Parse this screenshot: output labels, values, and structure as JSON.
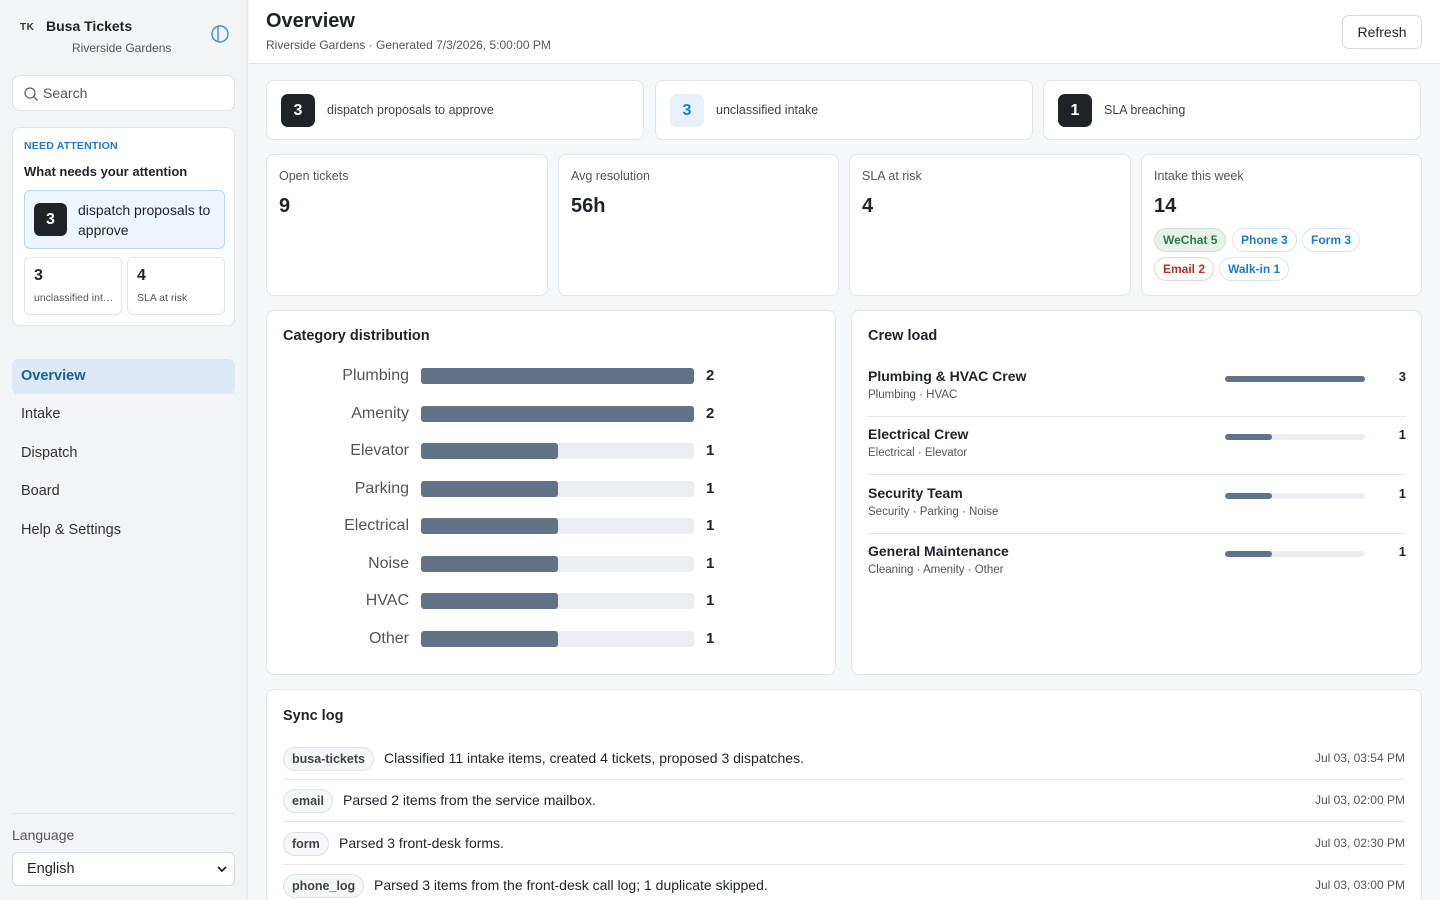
{
  "brand": {
    "logo": "TK",
    "name": "Busa Tickets",
    "property": "Riverside Gardens"
  },
  "search": {
    "placeholder": "Search"
  },
  "attention": {
    "eyebrow": "NEED ATTENTION",
    "title": "What needs your attention",
    "primary": {
      "count": "3",
      "label": "dispatch proposals to approve"
    },
    "secondary": [
      {
        "count": "3",
        "label": "unclassified intake"
      },
      {
        "count": "4",
        "label": "SLA at risk"
      }
    ]
  },
  "nav": {
    "items": [
      {
        "label": "Overview",
        "active": true
      },
      {
        "label": "Intake",
        "active": false
      },
      {
        "label": "Dispatch",
        "active": false
      },
      {
        "label": "Board",
        "active": false
      },
      {
        "label": "Help & Settings",
        "active": false
      }
    ]
  },
  "language": {
    "label": "Language",
    "value": "English"
  },
  "header": {
    "title": "Overview",
    "subtitle": "Riverside Gardens · Generated 7/3/2026, 5:00:00 PM",
    "refresh_label": "Refresh"
  },
  "alerts": [
    {
      "count": "3",
      "label": "dispatch proposals to approve",
      "style": "dark"
    },
    {
      "count": "3",
      "label": "unclassified intake",
      "style": "light"
    },
    {
      "count": "1",
      "label": "SLA breaching",
      "style": "dark"
    }
  ],
  "stats": [
    {
      "label": "Open tickets",
      "value": "9"
    },
    {
      "label": "Avg resolution",
      "value": "56h"
    },
    {
      "label": "SLA at risk",
      "value": "4"
    },
    {
      "label": "Intake this week",
      "value": "14"
    }
  ],
  "intake_chips": [
    {
      "label": "WeChat 5",
      "tone": "green"
    },
    {
      "label": "Phone 3",
      "tone": "blue"
    },
    {
      "label": "Form 3",
      "tone": "blue"
    },
    {
      "label": "Email 2",
      "tone": "red"
    },
    {
      "label": "Walk-in 1",
      "tone": "blue"
    }
  ],
  "category_distribution": {
    "title": "Category distribution",
    "max": 2,
    "rows": [
      {
        "label": "Plumbing",
        "value": 2
      },
      {
        "label": "Amenity",
        "value": 2
      },
      {
        "label": "Elevator",
        "value": 1
      },
      {
        "label": "Parking",
        "value": 1
      },
      {
        "label": "Electrical",
        "value": 1
      },
      {
        "label": "Noise",
        "value": 1
      },
      {
        "label": "HVAC",
        "value": 1
      },
      {
        "label": "Other",
        "value": 1
      }
    ]
  },
  "crew_load": {
    "title": "Crew load",
    "max": 3,
    "rows": [
      {
        "name": "Plumbing & HVAC Crew",
        "categories": "Plumbing · HVAC",
        "value": 3
      },
      {
        "name": "Electrical Crew",
        "categories": "Electrical · Elevator",
        "value": 1
      },
      {
        "name": "Security Team",
        "categories": "Security · Parking · Noise",
        "value": 1
      },
      {
        "name": "General Maintenance",
        "categories": "Cleaning · Amenity · Other",
        "value": 1
      }
    ]
  },
  "sync_log": {
    "title": "Sync log",
    "rows": [
      {
        "source": "busa-tickets",
        "message": "Classified 11 intake items, created 4 tickets, proposed 3 dispatches.",
        "time": "Jul 03, 03:54 PM"
      },
      {
        "source": "email",
        "message": "Parsed 2 items from the service mailbox.",
        "time": "Jul 03, 02:00 PM"
      },
      {
        "source": "form",
        "message": "Parsed 3 front-desk forms.",
        "time": "Jul 03, 02:30 PM"
      },
      {
        "source": "phone_log",
        "message": "Parsed 3 items from the front-desk call log; 1 duplicate skipped.",
        "time": "Jul 03, 03:00 PM"
      }
    ]
  }
}
